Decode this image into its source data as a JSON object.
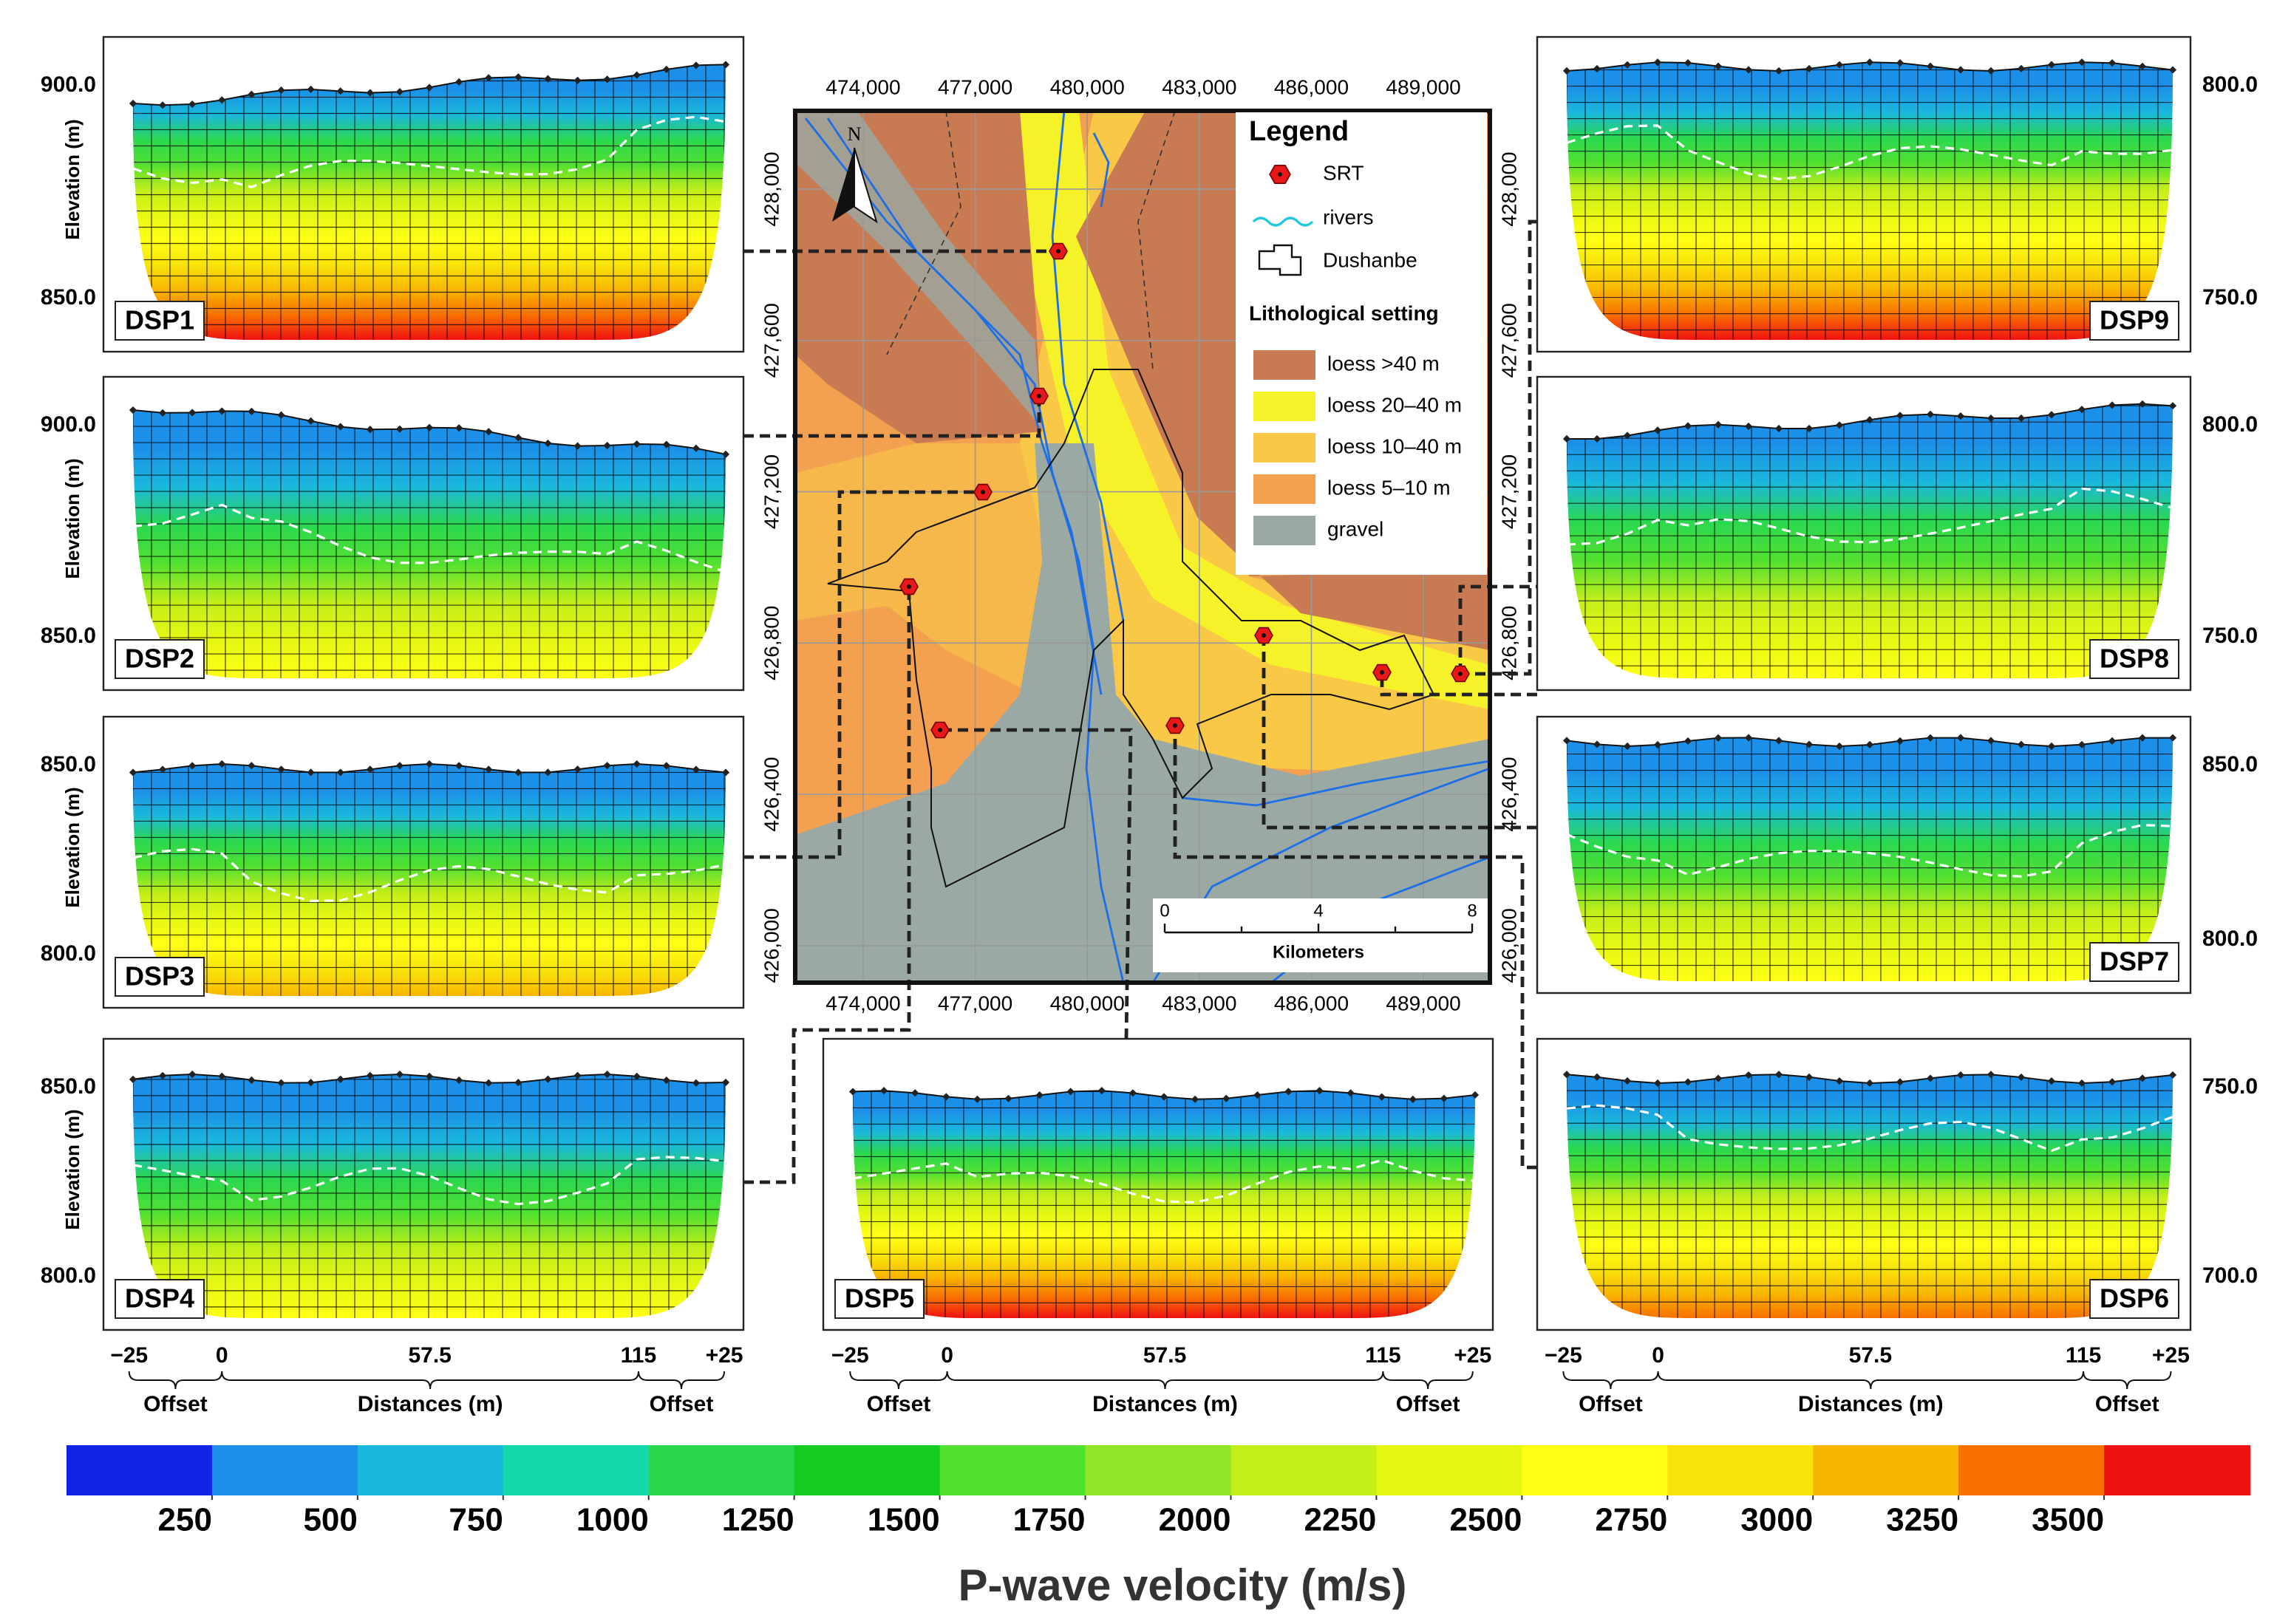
{
  "panels": [
    {
      "label": "DSP1",
      "elevation_ticks": [
        "900.0",
        "850.0"
      ]
    },
    {
      "label": "DSP2",
      "elevation_ticks": [
        "900.0",
        "850.0"
      ]
    },
    {
      "label": "DSP3",
      "elevation_ticks": [
        "850.0",
        "800.0"
      ]
    },
    {
      "label": "DSP4",
      "elevation_ticks": [
        "850.0",
        "800.0"
      ]
    },
    {
      "label": "DSP5"
    },
    {
      "label": "DSP6",
      "elevation_ticks": [
        "750.0",
        "700.0"
      ]
    },
    {
      "label": "DSP7",
      "elevation_ticks": [
        "850.0",
        "800.0"
      ]
    },
    {
      "label": "DSP8",
      "elevation_ticks": [
        "800.0",
        "750.0"
      ]
    },
    {
      "label": "DSP9",
      "elevation_ticks": [
        "800.0",
        "750.0"
      ]
    }
  ],
  "elevation_label": "Elevation (m)",
  "x_axis": {
    "ticks": [
      {
        "value": -25,
        "label": "−25"
      },
      0,
      57.5,
      115,
      {
        "value": 25,
        "label": "+25"
      }
    ],
    "offset": "Offset",
    "distances": "Distances (m)"
  },
  "map": {
    "xlim": [
      472180,
      490780
    ],
    "ylim": [
      425902,
      428207
    ],
    "xticks": [
      {
        "value": 474000,
        "label": "474,000"
      },
      {
        "value": 477000,
        "label": "477,000"
      },
      {
        "value": 480000,
        "label": "480,000"
      },
      {
        "value": 483000,
        "label": "483,000"
      },
      {
        "value": 486000,
        "label": "486,000"
      },
      {
        "value": 489000,
        "label": "489,000"
      }
    ],
    "yticks": [
      {
        "value": 426000,
        "label": "426,000"
      },
      {
        "value": 426400,
        "label": "426,400"
      },
      {
        "value": 426800,
        "label": "426,800"
      },
      {
        "value": 427200,
        "label": "427,200"
      },
      {
        "value": 427600,
        "label": "427,600"
      },
      {
        "value": 428000,
        "label": "428,000"
      }
    ],
    "north": "N",
    "legend": {
      "title": "Legend",
      "symbols": [
        "SRT",
        "rivers",
        "Dushanbe"
      ],
      "lith_title": "Lithological setting",
      "lith": [
        {
          "label": "loess >40 m",
          "color": "#c87a52"
        },
        {
          "label": "loess 20–40 m",
          "color": "#f6f22a"
        },
        {
          "label": "loess 10–40 m",
          "color": "#f8c846"
        },
        {
          "label": "loess 5–10 m",
          "color": "#f3a050"
        },
        {
          "label": "gravel",
          "color": "#9aa9a4"
        }
      ]
    },
    "scale": {
      "ticks": [
        0,
        4,
        8
      ],
      "unit": "Kilometers"
    }
  },
  "colorbar": {
    "colors": [
      "#1222e6",
      "#1c90e8",
      "#1ab8dc",
      "#12d8aa",
      "#2ad850",
      "#14cc22",
      "#52e030",
      "#92e62a",
      "#c2ee1a",
      "#e6f812",
      "#ffff14",
      "#f8e40a",
      "#f8b600",
      "#f87000",
      "#f01212"
    ],
    "vlim": [
      0,
      3750
    ],
    "ticks": [
      250,
      500,
      750,
      1000,
      1250,
      1500,
      1750,
      2000,
      2250,
      2500,
      2750,
      3000,
      3250,
      3500
    ],
    "label": "P-wave velocity (m/s)"
  }
}
